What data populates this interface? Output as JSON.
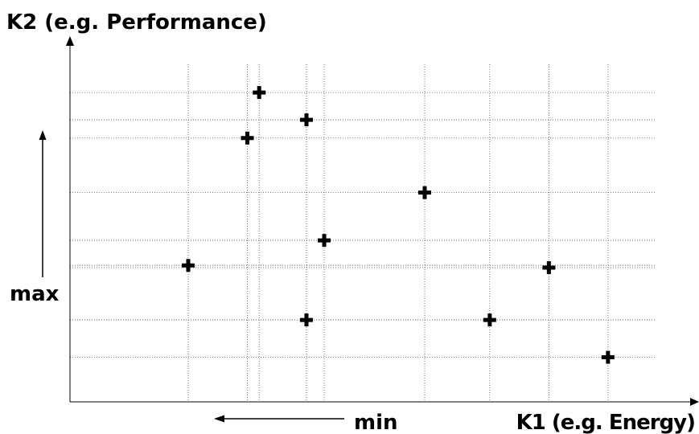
{
  "chart_data": {
    "type": "scatter",
    "title": "",
    "ylabel": "K2 (e.g. Performance)",
    "xlabel": "K1 (e.g. Energy)",
    "direction_labels": {
      "vertical": "max",
      "horizontal": "min"
    },
    "grid": true,
    "grid_style": "dotted",
    "marker": "plus",
    "points": [
      {
        "x": 1.0,
        "y": 3.0
      },
      {
        "x": 1.5,
        "y": 5.8
      },
      {
        "x": 1.6,
        "y": 6.8
      },
      {
        "x": 2.0,
        "y": 6.2
      },
      {
        "x": 2.0,
        "y": 1.8
      },
      {
        "x": 2.15,
        "y": 3.55
      },
      {
        "x": 3.0,
        "y": 4.6
      },
      {
        "x": 3.55,
        "y": 1.8
      },
      {
        "x": 4.05,
        "y": 2.95
      },
      {
        "x": 4.55,
        "y": 0.98
      }
    ],
    "xlim": [
      0,
      5.3
    ],
    "ylim": [
      0,
      8.4
    ]
  },
  "colors": {
    "ink": "#000000",
    "grid": "#555555",
    "background": "#ffffff"
  }
}
